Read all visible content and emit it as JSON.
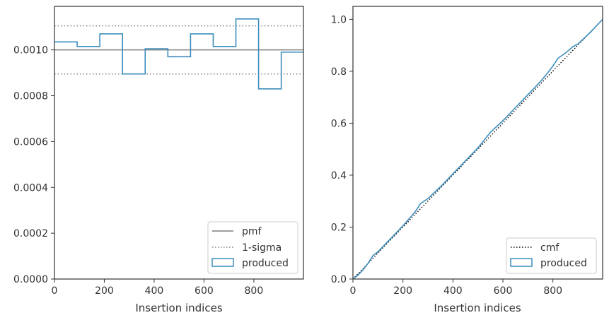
{
  "chart_data": [
    {
      "type": "histogram",
      "xlabel": "Insertion indices",
      "ylabel": "",
      "xlim": [
        0,
        999
      ],
      "ylim": [
        0,
        0.00119
      ],
      "xticks": [
        0,
        200,
        400,
        600,
        800
      ],
      "xtick_labels": [
        "0",
        "200",
        "400",
        "600",
        "800"
      ],
      "yticks": [
        0,
        0.0002,
        0.0004,
        0.0006,
        0.0008,
        0.001
      ],
      "ytick_labels": [
        "0.0000",
        "0.0002",
        "0.0004",
        "0.0006",
        "0.0008",
        "0.0010"
      ],
      "bin_edges": [
        0,
        91,
        182,
        273,
        364,
        455,
        546,
        637,
        728,
        819,
        910,
        999
      ],
      "values": [
        0.001035,
        0.001015,
        0.00107,
        0.000895,
        0.001005,
        0.00097,
        0.00107,
        0.001015,
        0.001135,
        0.00083,
        0.00099
      ],
      "pmf": 0.001,
      "sigma_band": [
        0.000895,
        0.001105
      ],
      "legend": [
        "pmf",
        "1-sigma",
        "produced"
      ],
      "legend_position": "lower right",
      "colors": {
        "produced": "#3c8dbc",
        "pmf": "#7f7f7f",
        "sigma": "#7f7f7f"
      }
    },
    {
      "type": "line",
      "xlabel": "Insertion indices",
      "ylabel": "",
      "xlim": [
        0,
        999
      ],
      "ylim": [
        0,
        1.05
      ],
      "xticks": [
        0,
        200,
        400,
        600,
        800
      ],
      "xtick_labels": [
        "0",
        "200",
        "400",
        "600",
        "800"
      ],
      "yticks": [
        0,
        0.2,
        0.4,
        0.6,
        0.8,
        1.0
      ],
      "ytick_labels": [
        "0.0",
        "0.2",
        "0.4",
        "0.6",
        "0.8",
        "1.0"
      ],
      "cmf": {
        "x": [
          0,
          999
        ],
        "y": [
          0,
          1.0
        ]
      },
      "produced": {
        "x": [
          0,
          20,
          40,
          60,
          80,
          100,
          150,
          200,
          250,
          270,
          300,
          350,
          400,
          450,
          500,
          550,
          600,
          650,
          700,
          750,
          780,
          800,
          820,
          850,
          880,
          900,
          950,
          999
        ],
        "y": [
          0,
          0.015,
          0.035,
          0.06,
          0.09,
          0.105,
          0.155,
          0.205,
          0.26,
          0.29,
          0.31,
          0.355,
          0.405,
          0.455,
          0.505,
          0.565,
          0.61,
          0.66,
          0.71,
          0.76,
          0.795,
          0.82,
          0.85,
          0.87,
          0.895,
          0.905,
          0.95,
          1.0
        ]
      },
      "legend": [
        "cmf",
        "produced"
      ],
      "legend_position": "lower right",
      "colors": {
        "produced": "#3c8dbc",
        "cmf": "#000000"
      }
    }
  ]
}
